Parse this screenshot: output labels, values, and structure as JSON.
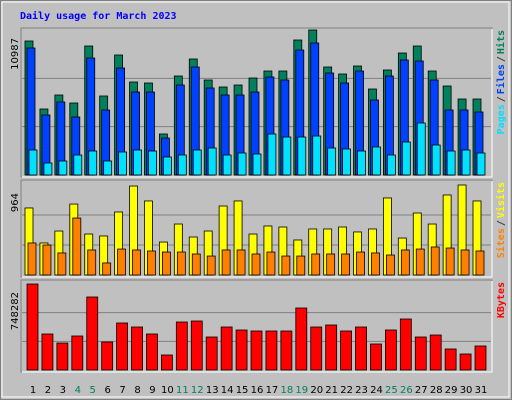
{
  "title": "Daily usage for March 2023",
  "legend_separator": "/",
  "chart_data": [
    {
      "type": "bar",
      "ylim": [
        0,
        10987
      ],
      "yticks": [
        10987
      ],
      "grid_divisions": 3,
      "series": [
        {
          "name": "Hits",
          "color": "#00805c",
          "values": [
            10153,
            5001,
            6062,
            5455,
            9774,
            5986,
            9092,
            7047,
            6971,
            3107,
            7501,
            8789,
            7198,
            6668,
            6819,
            7350,
            7880,
            7880,
            10229,
            10987,
            8183,
            7653,
            8259,
            6516,
            7956,
            9244,
            9774,
            7880,
            6744,
            5759,
            5759
          ]
        },
        {
          "name": "Files",
          "color": "#0040ff",
          "values": [
            9623,
            4546,
            5531,
            4395,
            8865,
            4925,
            8107,
            6289,
            6289,
            2803,
            6819,
            8183,
            6592,
            6062,
            6062,
            6289,
            7425,
            7198,
            9471,
            10002,
            7729,
            6971,
            7880,
            5683,
            7501,
            8714,
            8638,
            7198,
            4925,
            4925,
            4773
          ]
        },
        {
          "name": "Pages",
          "color": "#00e0ff",
          "values": [
            1894,
            909,
            1061,
            1515,
            1818,
            1061,
            1743,
            1894,
            1818,
            1364,
            1515,
            1894,
            2046,
            1515,
            1667,
            1591,
            3107,
            2879,
            2879,
            2955,
            2046,
            1970,
            1818,
            2122,
            1515,
            2500,
            3940,
            2273,
            1818,
            1894,
            1667
          ]
        }
      ]
    },
    {
      "type": "bar",
      "ylim": [
        0,
        964
      ],
      "yticks": [
        964
      ],
      "grid_divisions": 3,
      "series": [
        {
          "name": "Visits",
          "color": "#ffff00",
          "values": [
            718,
            343,
            471,
            760,
            439,
            418,
            675,
            953,
            793,
            353,
            546,
            407,
            471,
            739,
            793,
            439,
            525,
            514,
            375,
            493,
            493,
            514,
            461,
            493,
            825,
            396,
            664,
            546,
            857,
            964,
            793
          ]
        },
        {
          "name": "Sites",
          "color": "#ff8000",
          "values": [
            343,
            321,
            236,
            610,
            268,
            129,
            278,
            268,
            257,
            246,
            246,
            225,
            203,
            268,
            268,
            225,
            246,
            203,
            203,
            225,
            225,
            225,
            246,
            236,
            214,
            268,
            278,
            300,
            289,
            268,
            257
          ]
        }
      ]
    },
    {
      "type": "bar",
      "ylim": [
        0,
        748282
      ],
      "yticks": [
        748282
      ],
      "grid_divisions": 3,
      "categories": [
        "1",
        "2",
        "3",
        "4",
        "5",
        "6",
        "7",
        "8",
        "9",
        "10",
        "11",
        "12",
        "13",
        "14",
        "15",
        "16",
        "17",
        "18",
        "19",
        "20",
        "21",
        "22",
        "23",
        "24",
        "25",
        "26",
        "27",
        "28",
        "29",
        "30",
        "31"
      ],
      "category_colors": [
        "#000000",
        "#000000",
        "#000000",
        "#00805c",
        "#00805c",
        "#000000",
        "#000000",
        "#000000",
        "#000000",
        "#000000",
        "#00805c",
        "#00805c",
        "#000000",
        "#000000",
        "#000000",
        "#000000",
        "#000000",
        "#00805c",
        "#00805c",
        "#000000",
        "#000000",
        "#000000",
        "#000000",
        "#000000",
        "#00805c",
        "#00805c",
        "#000000",
        "#000000",
        "#000000",
        "#000000",
        "#000000"
      ],
      "series": [
        {
          "name": "KBytes",
          "color": "#ff0000",
          "values": [
            748282,
            313236,
            234927,
            295834,
            635173,
            243628,
            408947,
            374143,
            313236,
            130515,
            417648,
            426349,
            287133,
            374143,
            348040,
            339339,
            339339,
            339339,
            539462,
            374143,
            391545,
            339339,
            374143,
            226226,
            348040,
            443751,
            287133,
            304535,
            182721,
            139216,
            208824
          ]
        }
      ]
    }
  ]
}
